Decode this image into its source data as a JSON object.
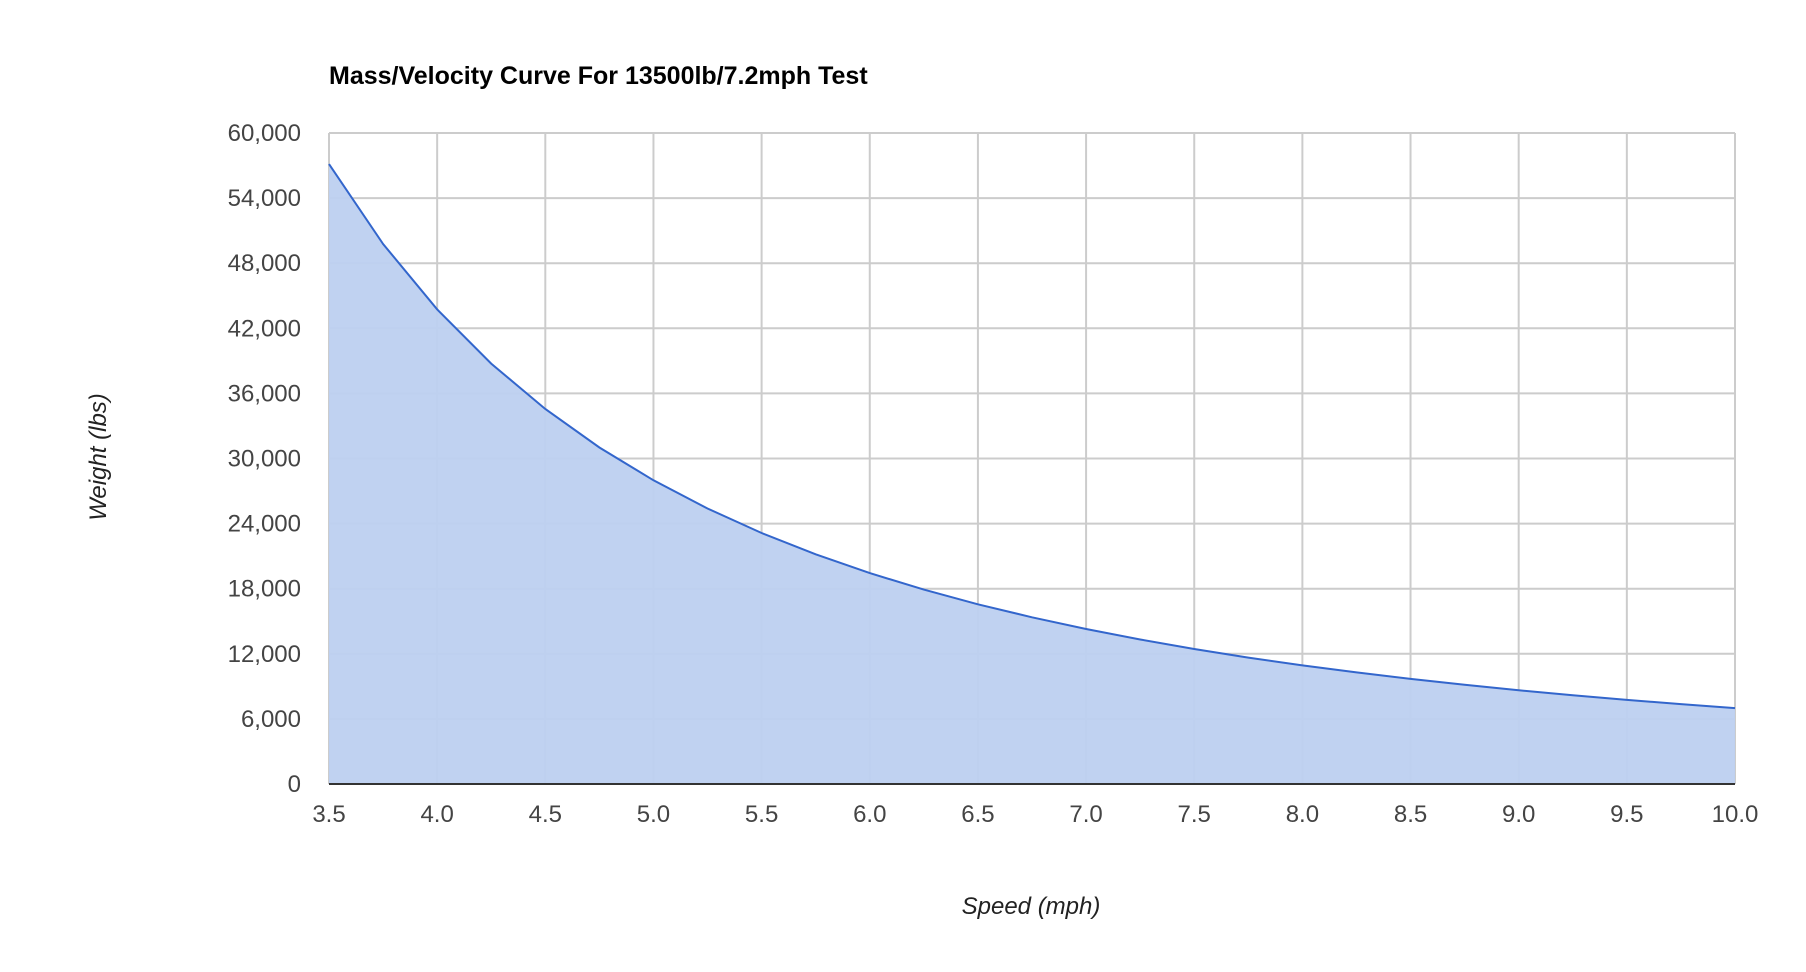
{
  "chart_data": {
    "type": "area",
    "title": "Mass/Velocity Curve For 13500lb/7.2mph Test",
    "xlabel": "Speed (mph)",
    "ylabel": "Weight (lbs)",
    "xlim": [
      3.5,
      10.0
    ],
    "ylim": [
      0,
      60000
    ],
    "grid": true,
    "legend": "none",
    "x_ticks": [
      "3.5",
      "4.0",
      "4.5",
      "5.0",
      "5.5",
      "6.0",
      "6.5",
      "7.0",
      "7.5",
      "8.0",
      "8.5",
      "9.0",
      "9.5",
      "10.0"
    ],
    "y_ticks": [
      "0",
      "6,000",
      "12,000",
      "18,000",
      "24,000",
      "30,000",
      "36,000",
      "42,000",
      "48,000",
      "54,000",
      "60,000"
    ],
    "colors": {
      "line": "#3366cc",
      "fill": "#bdd0f0",
      "grid": "#cccccc",
      "baseline": "#333333"
    },
    "series": [
      {
        "x": [
          3.5,
          3.75,
          4.0,
          4.25,
          4.5,
          4.75,
          5.0,
          5.25,
          5.5,
          5.75,
          6.0,
          6.25,
          6.5,
          6.75,
          7.0,
          7.25,
          7.5,
          7.75,
          8.0,
          8.25,
          8.5,
          8.75,
          9.0,
          9.25,
          9.5,
          9.75,
          10.0
        ],
        "y": [
          57130,
          49766,
          43740,
          38745,
          34560,
          31018,
          27994,
          25391,
          23135,
          21167,
          19440,
          17916,
          16564,
          15360,
          14283,
          13314,
          12442,
          11652,
          10935,
          10282,
          9686,
          9141,
          8640,
          8179,
          7755,
          7362,
          6998
        ]
      }
    ]
  }
}
